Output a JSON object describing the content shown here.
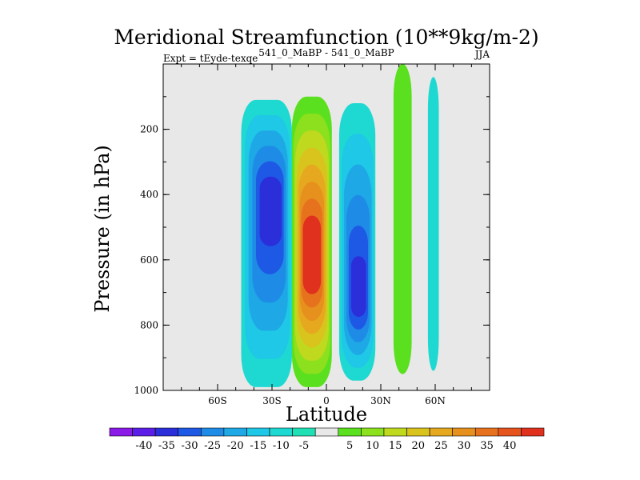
{
  "chart_data": {
    "type": "heatmap",
    "title": "Meridional Streamfunction (10**9kg/m-2)",
    "subtitle_left": "Expt = tEyde-texqe",
    "subtitle_center": "541_0_MaBP - 541_0_MaBP",
    "subtitle_right": "JJA",
    "xlabel": "Latitude",
    "ylabel": "Pressure (in hPa)",
    "xlim": [
      -90,
      90
    ],
    "ylim": [
      1000,
      0
    ],
    "x_ticks": [
      {
        "value": -60,
        "label": "60S"
      },
      {
        "value": -30,
        "label": "30S"
      },
      {
        "value": 0,
        "label": "0"
      },
      {
        "value": 30,
        "label": "30N"
      },
      {
        "value": 60,
        "label": "60N"
      }
    ],
    "y_ticks": [
      {
        "value": 200,
        "label": "200"
      },
      {
        "value": 400,
        "label": "400"
      },
      {
        "value": 600,
        "label": "600"
      },
      {
        "value": 800,
        "label": "800"
      },
      {
        "value": 1000,
        "label": "1000"
      }
    ],
    "background_color": "#e8e8e8",
    "colorbar": {
      "colors": [
        "#8a1ae6",
        "#5a1ee6",
        "#2a2fd9",
        "#1e59e6",
        "#1e8ce6",
        "#1ea8e6",
        "#1ec8e6",
        "#1ed9d1",
        "#1ee0b4",
        "#e8e8e8",
        "#5ae01e",
        "#8ce01e",
        "#bfd91e",
        "#d9c41e",
        "#e6a81e",
        "#e6901e",
        "#e6721e",
        "#e6541e",
        "#e0301e"
      ],
      "labels": [
        "-40",
        "-35",
        "-30",
        "-25",
        "-20",
        "-15",
        "-10",
        "-5",
        "5",
        "10",
        "15",
        "20",
        "25",
        "30",
        "35",
        "40"
      ]
    },
    "cells": [
      {
        "name": "south-cell",
        "lat_center": -33,
        "lat_halfwidth": 14,
        "p_top": 110,
        "p_bottom": 990,
        "peak": -33,
        "peak_lat": -30,
        "peak_p": 420,
        "sign": -1
      },
      {
        "name": "hadley-cell",
        "lat_center": -8,
        "lat_halfwidth": 11,
        "p_top": 100,
        "p_bottom": 990,
        "peak": 48,
        "peak_lat": -8,
        "peak_p": 600,
        "sign": 1
      },
      {
        "name": "north-cell",
        "lat_center": 17,
        "lat_halfwidth": 10,
        "p_top": 120,
        "p_bottom": 970,
        "peak": -32,
        "peak_lat": 18,
        "peak_p": 720,
        "sign": -1
      },
      {
        "name": "ferrel-band",
        "lat_center": 42,
        "lat_halfwidth": 5,
        "p_top": 0,
        "p_bottom": 950,
        "peak": 9,
        "peak_lat": 42,
        "peak_p": 400,
        "sign": 1
      },
      {
        "name": "polar-band",
        "lat_center": 59,
        "lat_halfwidth": 3,
        "p_top": 40,
        "p_bottom": 940,
        "peak": -6,
        "peak_lat": 59,
        "peak_p": 500,
        "sign": -1
      }
    ]
  }
}
